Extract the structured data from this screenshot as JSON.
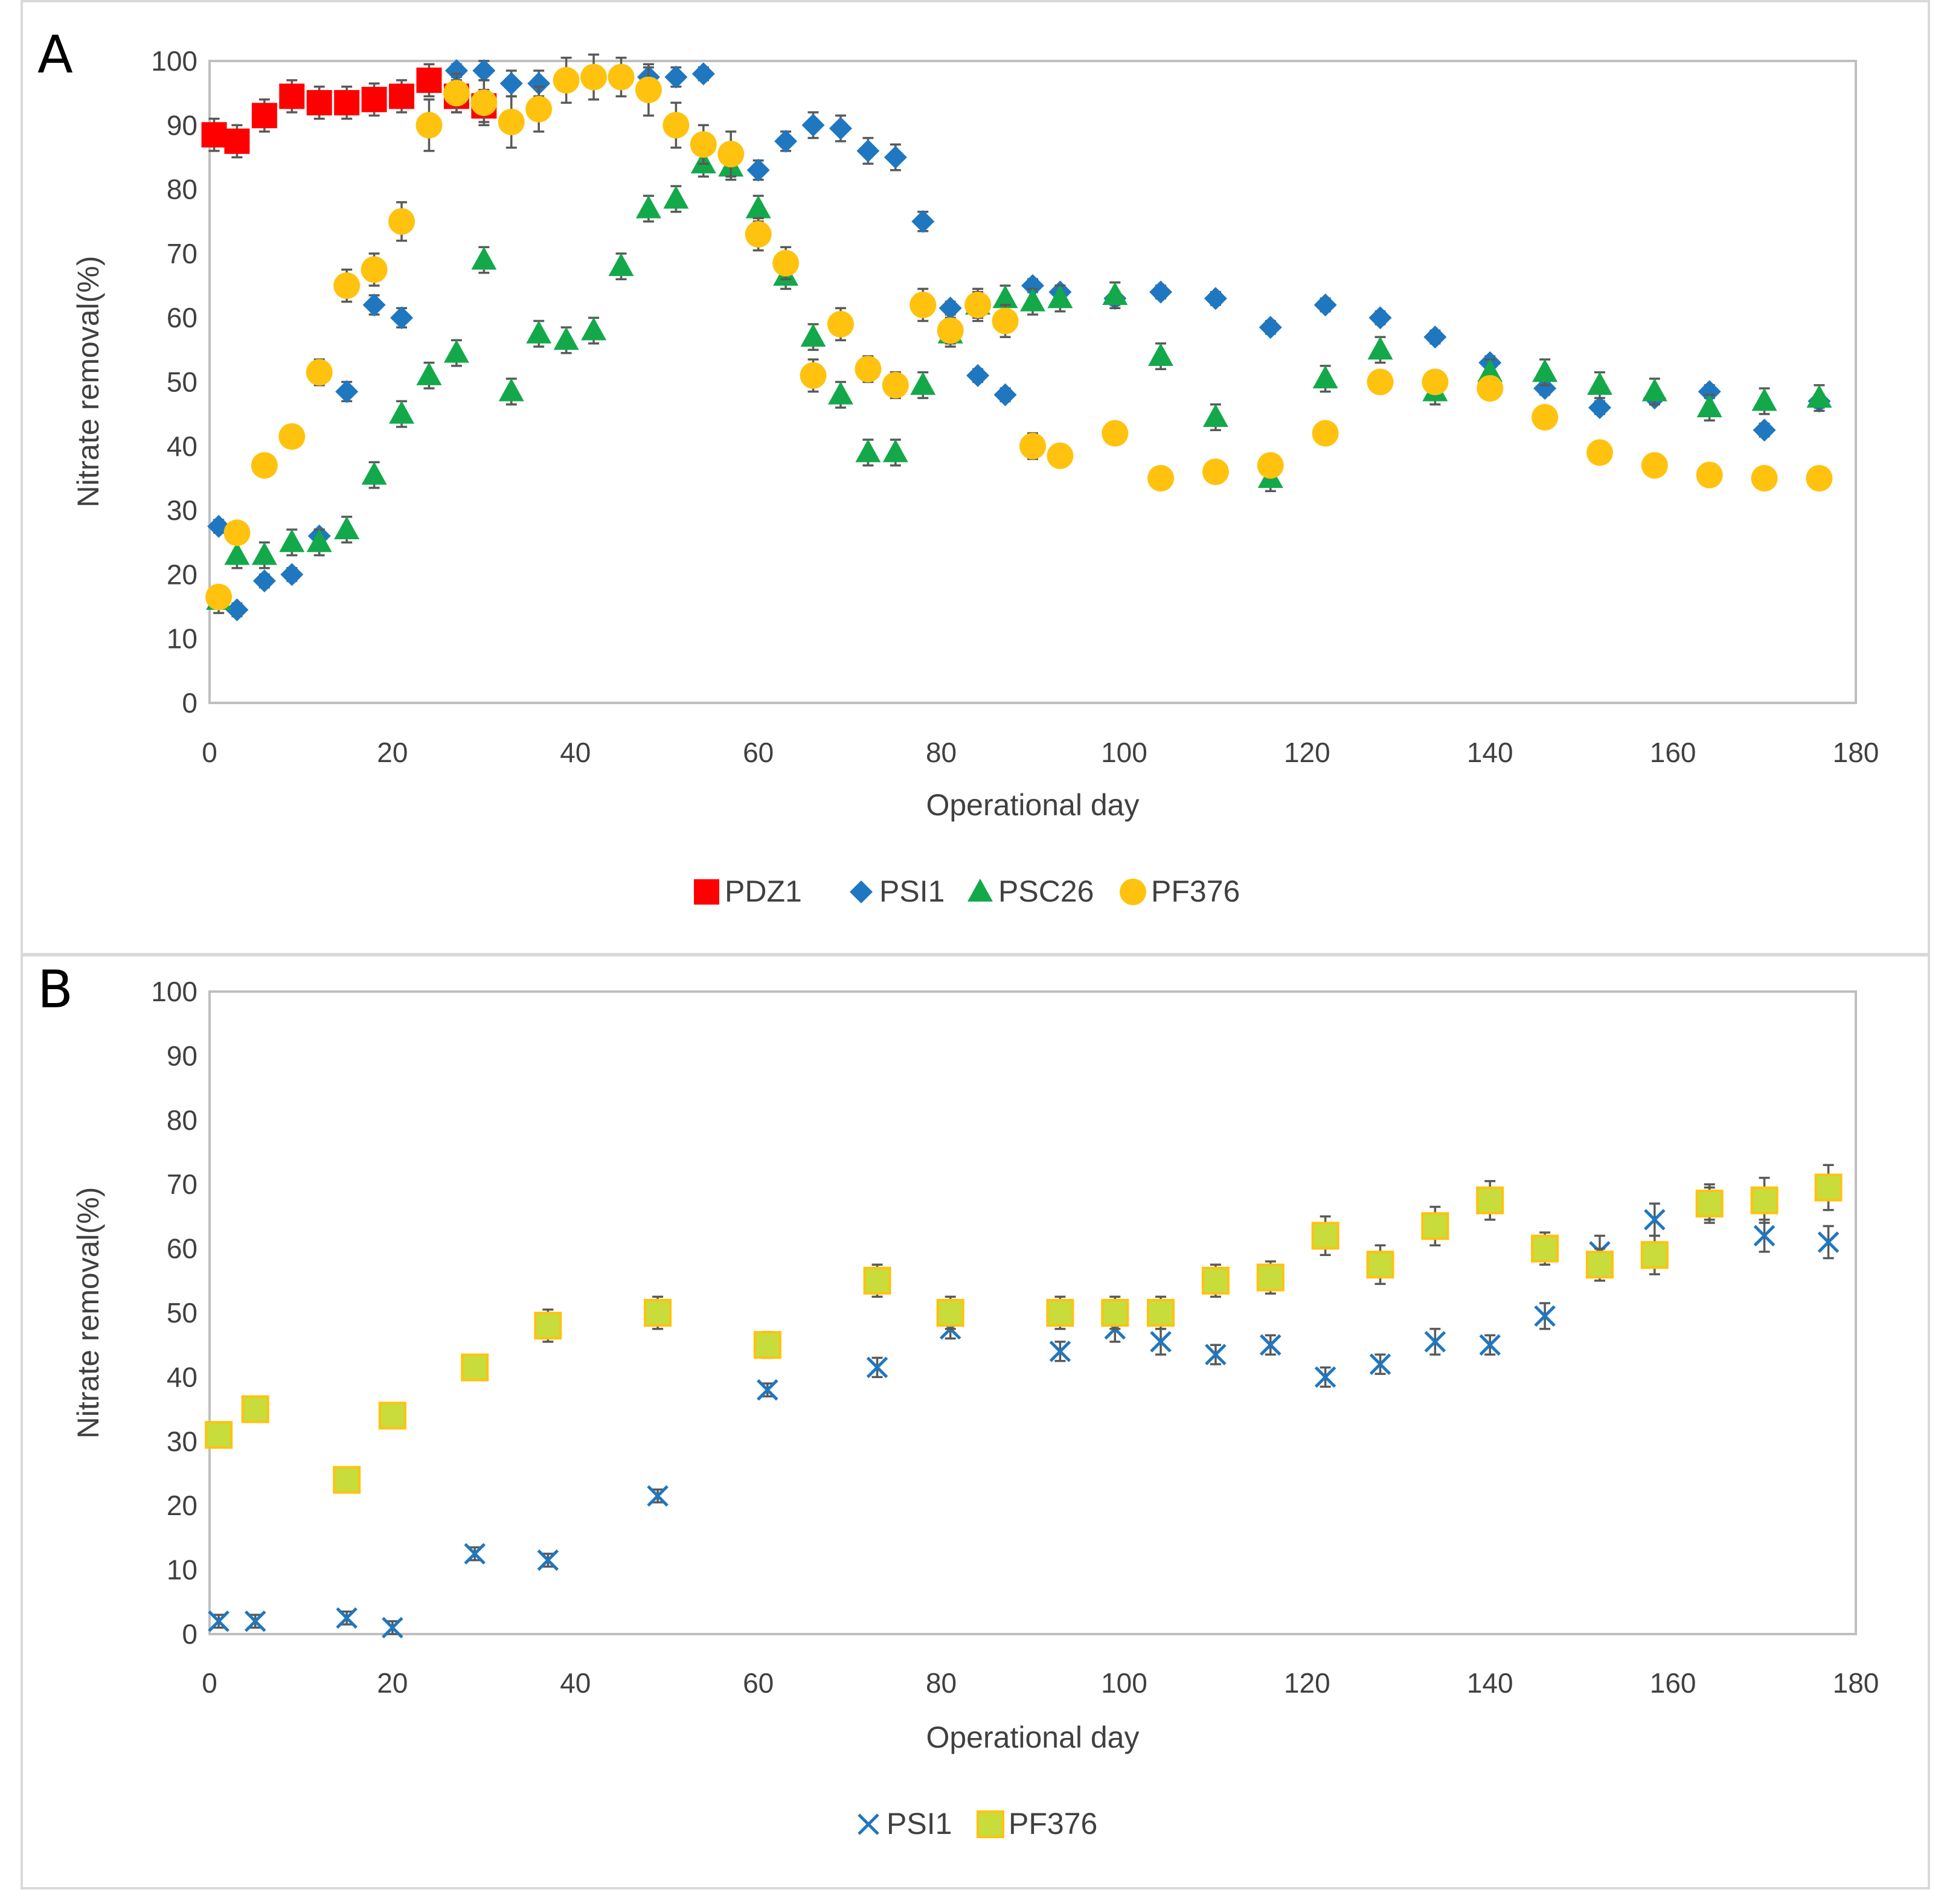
{
  "figure": {
    "panel_labels": [
      "A",
      "B"
    ]
  },
  "colors": {
    "PDZ1": "#ff0000",
    "PSI1": "#1f77c0",
    "PSC26": "#13a94a",
    "PF376": "#ffc20e",
    "PF376_square_fill": "#c8dc3c",
    "PF376_square_edge": "#ffc20e",
    "errbar": "#595959"
  },
  "chart_data": [
    {
      "panel": "A",
      "type": "scatter",
      "title": "",
      "xlabel": "Operational day",
      "ylabel": "Nitrate removal(%)",
      "xlim": [
        0,
        180
      ],
      "ylim": [
        0,
        100
      ],
      "xticks": [
        0,
        20,
        40,
        60,
        80,
        100,
        120,
        140,
        160,
        180
      ],
      "yticks": [
        0,
        10,
        20,
        30,
        40,
        50,
        60,
        70,
        80,
        90,
        100
      ],
      "legend": {
        "position": "bottom",
        "entries": [
          "PDZ1",
          "PSI1",
          "PSC26",
          "PF376"
        ]
      },
      "series": [
        {
          "name": "PDZ1",
          "marker": "square",
          "x": [
            0.5,
            3,
            6,
            9,
            12,
            15,
            18,
            21,
            24,
            27,
            30
          ],
          "y": [
            88.5,
            87.5,
            91.5,
            94.5,
            93.5,
            93.5,
            94,
            94.5,
            97,
            94.5,
            93
          ],
          "err": [
            2.5,
            2.5,
            2.5,
            2.5,
            2.5,
            2.5,
            2.5,
            2.5,
            2.5,
            2.5,
            2.5
          ]
        },
        {
          "name": "PSI1",
          "marker": "diamond",
          "x": [
            1,
            3,
            6,
            9,
            12,
            15,
            18,
            21,
            27,
            30,
            33,
            36,
            48,
            51,
            54,
            60,
            63,
            66,
            69,
            72,
            75,
            78,
            81,
            84,
            87,
            90,
            93,
            99,
            104,
            110,
            116,
            122,
            128,
            134,
            140,
            146,
            152,
            158,
            164,
            170,
            176
          ],
          "y": [
            27.5,
            14.5,
            19,
            20,
            26,
            48.5,
            62,
            60,
            98.5,
            98.5,
            96.5,
            96.5,
            97.5,
            97.5,
            98,
            83,
            87.5,
            90,
            89.5,
            86,
            85,
            75,
            61.5,
            51,
            48,
            65,
            64,
            63,
            64,
            63,
            58.5,
            62,
            60,
            57,
            53,
            49,
            46,
            47.5,
            48.5,
            42.5,
            47
          ],
          "err": [
            1,
            1,
            1,
            1,
            1,
            1.5,
            1.5,
            1.5,
            1,
            1.5,
            2,
            2,
            1.5,
            1.5,
            1,
            1.5,
            1.5,
            2,
            2,
            2,
            2,
            1.5,
            1,
            1,
            1,
            1,
            1,
            1,
            1,
            1,
            1,
            1,
            1,
            1,
            1,
            1,
            1,
            1,
            1,
            1,
            1
          ]
        },
        {
          "name": "PSC26",
          "marker": "triangle",
          "x": [
            1,
            3,
            6,
            9,
            12,
            15,
            18,
            21,
            24,
            27,
            30,
            33,
            36,
            39,
            42,
            45,
            48,
            51,
            54,
            57,
            60,
            63,
            66,
            69,
            72,
            75,
            78,
            81,
            84,
            87,
            90,
            93,
            99,
            104,
            110,
            116,
            122,
            128,
            134,
            140,
            146,
            152,
            158,
            164,
            170,
            176
          ],
          "y": [
            16,
            23,
            23,
            25,
            25,
            27,
            35.5,
            45,
            51,
            54.5,
            69,
            48.5,
            57.5,
            56.5,
            58,
            68,
            77,
            78.5,
            84,
            83.5,
            77,
            66.5,
            57,
            48,
            39,
            39,
            49.5,
            57.5,
            62,
            63,
            62.5,
            63,
            63.5,
            54,
            44.5,
            35,
            50.5,
            55,
            48.5,
            51.5,
            51.5,
            49.5,
            48.5,
            46,
            47,
            47.5
          ],
          "err": [
            2,
            2,
            2,
            2,
            2,
            2,
            2,
            2,
            2,
            2,
            2,
            2,
            2,
            2,
            2,
            2,
            2,
            2,
            2,
            2,
            2,
            2,
            2,
            2,
            2,
            2,
            2,
            2,
            2,
            2,
            2,
            2,
            2,
            2,
            2,
            2,
            2,
            2,
            2,
            2,
            2,
            2,
            2,
            2,
            2,
            2
          ]
        },
        {
          "name": "PF376",
          "marker": "circle",
          "x": [
            1,
            3,
            6,
            9,
            12,
            15,
            18,
            21,
            24,
            27,
            30,
            33,
            36,
            39,
            42,
            45,
            48,
            51,
            54,
            57,
            60,
            63,
            66,
            69,
            72,
            75,
            78,
            81,
            84,
            87,
            90,
            93,
            99,
            104,
            110,
            116,
            122,
            128,
            134,
            140,
            146,
            152,
            158,
            164,
            170,
            176
          ],
          "y": [
            16.5,
            26.5,
            37,
            41.5,
            51.5,
            65,
            67.5,
            75,
            90,
            95,
            93.5,
            90.5,
            92.5,
            97,
            97.5,
            97.5,
            95.5,
            90,
            87,
            85.5,
            73,
            68.5,
            51,
            59,
            52,
            49.5,
            62,
            58,
            62,
            59.5,
            40,
            38.5,
            42,
            35,
            36,
            37,
            42,
            50,
            50,
            49,
            44.5,
            39,
            37,
            35.5,
            35,
            35
          ],
          "err": [
            1.5,
            1.5,
            1,
            1,
            2,
            2.5,
            2.5,
            3,
            4,
            3,
            3.5,
            4,
            3.5,
            3.5,
            3.5,
            3,
            4,
            3.5,
            3,
            3.5,
            2.5,
            2.5,
            2.5,
            2.5,
            2,
            2,
            2.5,
            2,
            2.5,
            2.5,
            2,
            1.5,
            1.5,
            1,
            1,
            1.5,
            1.5,
            1.5,
            1.5,
            1.5,
            1.5,
            1,
            1,
            1,
            1,
            1
          ]
        }
      ]
    },
    {
      "panel": "B",
      "type": "scatter",
      "title": "",
      "xlabel": "Operational day",
      "ylabel": "Nitrate removal(%)",
      "xlim": [
        0,
        180
      ],
      "ylim": [
        0,
        100
      ],
      "xticks": [
        0,
        20,
        40,
        60,
        80,
        100,
        120,
        140,
        160,
        180
      ],
      "yticks": [
        0,
        10,
        20,
        30,
        40,
        50,
        60,
        70,
        80,
        90,
        100
      ],
      "legend": {
        "position": "bottom",
        "entries": [
          "PSI1",
          "PF376"
        ]
      },
      "series": [
        {
          "name": "PSI1",
          "marker": "x",
          "x": [
            1,
            5,
            15,
            20,
            29,
            37,
            49,
            61,
            73,
            81,
            93,
            99,
            104,
            110,
            116,
            122,
            128,
            134,
            140,
            146,
            152,
            158,
            164,
            170,
            177
          ],
          "y": [
            2,
            2,
            2.5,
            1,
            12.5,
            11.5,
            21.5,
            38,
            41.5,
            47.5,
            44,
            47.5,
            45.5,
            43.5,
            45,
            40,
            42,
            45.5,
            45,
            49.5,
            59.5,
            64.5,
            67,
            62,
            61
          ],
          "err": [
            1,
            1,
            1,
            1,
            1,
            1,
            1,
            1,
            1.5,
            1.5,
            1.5,
            2,
            2,
            1.5,
            1.5,
            1.5,
            1.5,
            2,
            1.5,
            2,
            2.5,
            2.5,
            2.5,
            2.5,
            2.5
          ]
        },
        {
          "name": "PF376",
          "marker": "square",
          "x": [
            1,
            5,
            15,
            20,
            29,
            37,
            49,
            61,
            73,
            81,
            93,
            99,
            104,
            110,
            116,
            122,
            128,
            134,
            140,
            146,
            152,
            158,
            164,
            170,
            177
          ],
          "y": [
            31,
            35,
            24,
            34,
            41.5,
            48,
            50,
            45,
            55,
            50,
            50,
            50,
            50,
            55,
            55.5,
            62,
            57.5,
            63.5,
            67.5,
            60,
            57.5,
            59,
            67,
            67.5,
            69.5
          ],
          "err": [
            0.5,
            0.5,
            0.5,
            0.5,
            1.5,
            2.5,
            2.5,
            2,
            2.5,
            2.5,
            2.5,
            2.5,
            2.5,
            2.5,
            2.5,
            3,
            3,
            3,
            3,
            2.5,
            2.5,
            3,
            3,
            3.5,
            3.5
          ]
        }
      ]
    }
  ]
}
